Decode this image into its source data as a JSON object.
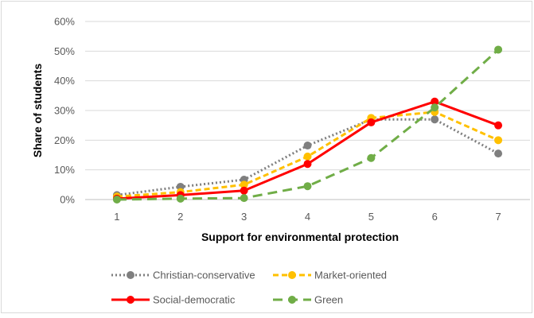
{
  "chart_data": {
    "type": "line",
    "title": "",
    "xlabel": "Support for environmental protection",
    "ylabel": "Share of students",
    "x": [
      1,
      2,
      3,
      4,
      5,
      6,
      7
    ],
    "x_tick_labels": [
      "1",
      "2",
      "3",
      "4",
      "5",
      "6",
      "7"
    ],
    "ylim": [
      0,
      60
    ],
    "y_tick_labels": [
      "0%",
      "10%",
      "20%",
      "30%",
      "40%",
      "50%",
      "60%"
    ],
    "y_unit": "%",
    "grid": "horizontal",
    "legend_position": "bottom",
    "series": [
      {
        "name": "Christian-conservative",
        "color": "#7f7f7f",
        "line_style": "dotted",
        "values": [
          1.5,
          4.3,
          6.7,
          18.2,
          27,
          27,
          15.5
        ]
      },
      {
        "name": "Market-oriented",
        "color": "#ffc000",
        "line_style": "dashed",
        "values": [
          1,
          2.5,
          5,
          14.5,
          27.5,
          29.5,
          20
        ]
      },
      {
        "name": "Social-democratic",
        "color": "#ff0000",
        "line_style": "solid",
        "values": [
          0.3,
          1.5,
          3,
          12,
          26,
          33,
          25
        ]
      },
      {
        "name": "Green",
        "color": "#70ad47",
        "line_style": "long-dash",
        "values": [
          0,
          0.3,
          0.5,
          4.5,
          14,
          31,
          50.5
        ]
      }
    ]
  }
}
